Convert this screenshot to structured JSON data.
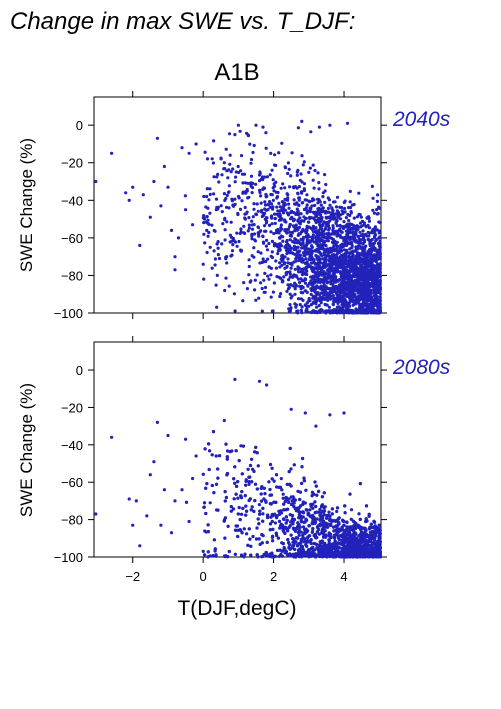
{
  "figure_title": "Change in max SWE vs. T_DJF:",
  "scenario": "A1B",
  "colors": {
    "points": "#2222bb",
    "period_label": "#2222bb",
    "axes": "#000000"
  },
  "chart_data": [
    {
      "type": "scatter",
      "period_label": "2040s",
      "xlabel": "",
      "ylabel": "SWE Change (%)",
      "xlim": [
        -3.1,
        5.05
      ],
      "ylim": [
        -100,
        15
      ],
      "xticks": [
        -2,
        0,
        2,
        4
      ],
      "yticks": [
        0,
        -20,
        -40,
        -60,
        -80,
        -100
      ],
      "ytick_labels": [
        "0",
        "−20",
        "−40",
        "−60",
        "−80",
        "−100"
      ],
      "grid": false,
      "approx_points": 3000,
      "distribution_note": "dense cloud for T 1.5 to 5 degC, changes mostly -40 to -100; sparse upper-left",
      "points": [
        [
          -3.05,
          -30
        ],
        [
          -2.6,
          -15
        ],
        [
          -2.2,
          -36
        ],
        [
          -2.1,
          -40
        ],
        [
          -2.0,
          -33
        ],
        [
          -1.8,
          -64
        ],
        [
          -1.7,
          -37
        ],
        [
          -1.5,
          -49
        ],
        [
          -1.4,
          -30
        ],
        [
          -1.3,
          -7
        ],
        [
          -1.2,
          -43
        ],
        [
          -1.1,
          -22
        ],
        [
          -1.0,
          -33
        ],
        [
          -0.9,
          -56
        ],
        [
          -0.8,
          -70
        ],
        [
          -0.8,
          -77
        ],
        [
          -0.7,
          -60
        ],
        [
          -0.6,
          -12
        ],
        [
          -0.5,
          -45
        ],
        [
          -0.4,
          -15
        ],
        [
          -0.3,
          -53
        ],
        [
          -0.2,
          -10
        ],
        [
          0.0,
          -74
        ],
        [
          0.1,
          -38
        ],
        [
          0.2,
          -65
        ],
        [
          0.4,
          -80
        ],
        [
          0.6,
          -20
        ],
        [
          0.7,
          -28
        ],
        [
          0.9,
          -5
        ],
        [
          1.0,
          0
        ],
        [
          1.2,
          -50
        ],
        [
          1.5,
          0
        ],
        [
          1.7,
          -1
        ],
        [
          2.3,
          -42
        ],
        [
          2.8,
          2
        ],
        [
          3.3,
          -1
        ],
        [
          3.6,
          0
        ],
        [
          4.1,
          1
        ]
      ]
    },
    {
      "type": "scatter",
      "period_label": "2080s",
      "xlabel": "T(DJF,degC)",
      "ylabel": "SWE Change (%)",
      "xlim": [
        -3.1,
        5.05
      ],
      "ylim": [
        -100,
        15
      ],
      "xticks": [
        -2,
        0,
        2,
        4
      ],
      "xtick_labels": [
        "−2",
        "0",
        "2",
        "4"
      ],
      "yticks": [
        0,
        -20,
        -40,
        -60,
        -80,
        -100
      ],
      "ytick_labels": [
        "0",
        "−20",
        "−40",
        "−60",
        "−80",
        "−100"
      ],
      "grid": false,
      "approx_points": 3000,
      "distribution_note": "dense cloud concentrated near -90 to -100 for T 2 to 5 degC; sparse upper-left",
      "points": [
        [
          -3.05,
          -77
        ],
        [
          -2.6,
          -36
        ],
        [
          -2.1,
          -69
        ],
        [
          -2.0,
          -83
        ],
        [
          -1.9,
          -70
        ],
        [
          -1.8,
          -94
        ],
        [
          -1.6,
          -78
        ],
        [
          -1.5,
          -56
        ],
        [
          -1.4,
          -49
        ],
        [
          -1.3,
          -28
        ],
        [
          -1.2,
          -83
        ],
        [
          -1.1,
          -64
        ],
        [
          -1.0,
          -35
        ],
        [
          -0.9,
          -87
        ],
        [
          -0.8,
          -70
        ],
        [
          -0.6,
          -64
        ],
        [
          -0.5,
          -37
        ],
        [
          -0.4,
          -81
        ],
        [
          -0.3,
          -58
        ],
        [
          -0.2,
          -46
        ],
        [
          0.0,
          -97
        ],
        [
          0.2,
          -71
        ],
        [
          0.6,
          -27
        ],
        [
          0.9,
          -5
        ],
        [
          1.6,
          -6
        ],
        [
          1.8,
          -8
        ],
        [
          2.5,
          -21
        ],
        [
          2.9,
          -23
        ],
        [
          3.2,
          -30
        ],
        [
          3.6,
          -24
        ],
        [
          4.0,
          -23
        ]
      ]
    }
  ]
}
